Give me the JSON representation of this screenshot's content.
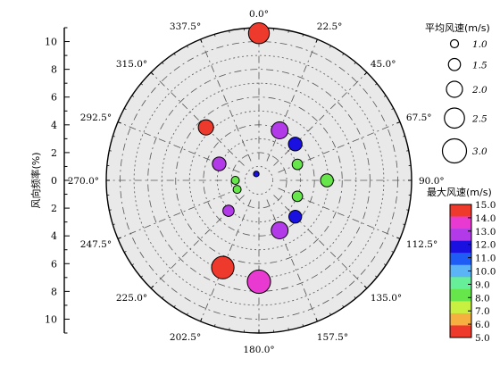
{
  "chart_data": {
    "type": "scatter",
    "subtype": "polar-bubble",
    "angle_labels": [
      "0.0°",
      "22.5°",
      "45.0°",
      "67.5°",
      "90.0°",
      "112.5°",
      "135.0°",
      "157.5°",
      "180.0°",
      "202.5°",
      "225.0°",
      "247.5°",
      "270.0°",
      "292.5°",
      "315.0°",
      "337.5°"
    ],
    "r_axis": {
      "label": "风向频率(%)",
      "range": [
        0,
        11
      ],
      "upper_ticks": [
        "10",
        "8",
        "6",
        "4",
        "2",
        "0"
      ],
      "lower_ticks": [
        "2",
        "4",
        "6",
        "8",
        "10"
      ]
    },
    "size_legend": {
      "title": "平均风速(m/s)",
      "entries": [
        {
          "label": "1.0",
          "value": 1.0
        },
        {
          "label": "1.5",
          "value": 1.5
        },
        {
          "label": "2.0",
          "value": 2.0
        },
        {
          "label": "2.5",
          "value": 2.5
        },
        {
          "label": "3.0",
          "value": 3.0
        }
      ]
    },
    "color_legend": {
      "title": "最大风速(m/s)",
      "ticks": [
        "15.0",
        "14.0",
        "13.0",
        "12.0",
        "11.0",
        "10.0",
        "9.0",
        "8.0",
        "7.0",
        "6.0",
        "5.0"
      ],
      "bands": [
        {
          "from": 14,
          "to": 15,
          "color": "#ee3a2c"
        },
        {
          "from": 13,
          "to": 14,
          "color": "#e83ad0"
        },
        {
          "from": 12,
          "to": 13,
          "color": "#b23ae8"
        },
        {
          "from": 11,
          "to": 12,
          "color": "#1a10e0"
        },
        {
          "from": 10,
          "to": 11,
          "color": "#1e5cf5"
        },
        {
          "from": 9,
          "to": 10,
          "color": "#5ab4f5"
        },
        {
          "from": 8,
          "to": 9,
          "color": "#66ee99"
        },
        {
          "from": 7,
          "to": 8,
          "color": "#66e64a"
        },
        {
          "from": 6,
          "to": 7,
          "color": "#c8f040"
        },
        {
          "from": 5,
          "to": 6,
          "color": "#f5b040"
        },
        {
          "from": 4,
          "to": 5,
          "color": "#ee3a2c"
        }
      ]
    },
    "points": [
      {
        "direction": 0,
        "frequency": 10.6,
        "mean_speed": 2.6,
        "max_speed": 14.5
      },
      {
        "direction": 22.5,
        "frequency": 3.9,
        "mean_speed": 2.1,
        "max_speed": 12.5
      },
      {
        "direction": 45,
        "frequency": 3.7,
        "mean_speed": 1.7,
        "max_speed": 11.5
      },
      {
        "direction": 67.5,
        "frequency": 3.0,
        "mean_speed": 1.3,
        "max_speed": 7.5
      },
      {
        "direction": 90,
        "frequency": 4.9,
        "mean_speed": 1.6,
        "max_speed": 7.5
      },
      {
        "direction": 112.5,
        "frequency": 3.0,
        "mean_speed": 1.3,
        "max_speed": 7.5
      },
      {
        "direction": 135,
        "frequency": 3.7,
        "mean_speed": 1.6,
        "max_speed": 11.5
      },
      {
        "direction": 157.5,
        "frequency": 3.9,
        "mean_speed": 2.1,
        "max_speed": 12.5
      },
      {
        "direction": 180,
        "frequency": 7.3,
        "mean_speed": 2.9,
        "max_speed": 13.5
      },
      {
        "direction": 202.5,
        "frequency": 6.8,
        "mean_speed": 2.8,
        "max_speed": 14.5
      },
      {
        "direction": 225,
        "frequency": 3.1,
        "mean_speed": 1.4,
        "max_speed": 12.5
      },
      {
        "direction": 247.5,
        "frequency": 1.7,
        "mean_speed": 1.0,
        "max_speed": 7.5
      },
      {
        "direction": 270,
        "frequency": 1.7,
        "mean_speed": 1.0,
        "max_speed": 7.5
      },
      {
        "direction": 292.5,
        "frequency": 3.1,
        "mean_speed": 1.7,
        "max_speed": 12.5
      },
      {
        "direction": 315,
        "frequency": 5.4,
        "mean_speed": 1.9,
        "max_speed": 14.5
      },
      {
        "direction": 337.5,
        "frequency": 0.5,
        "mean_speed": 0.7,
        "max_speed": 11.5
      }
    ]
  }
}
